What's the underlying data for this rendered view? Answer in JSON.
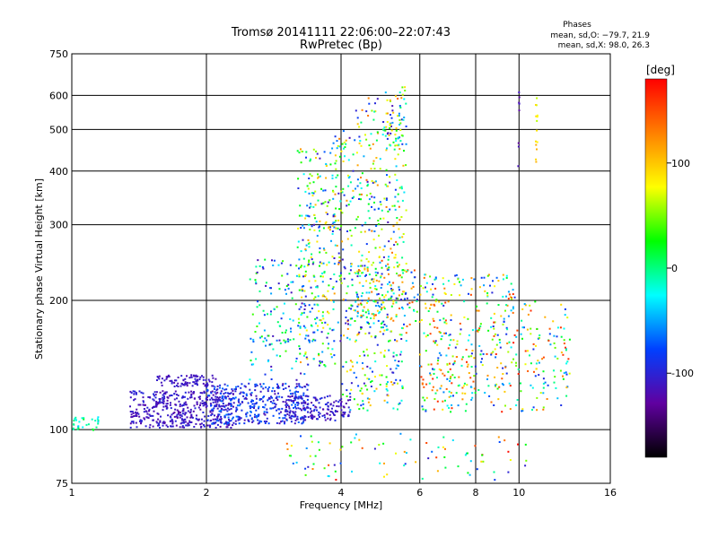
{
  "chart_data": {
    "type": "scatter",
    "title": "Tromsø 20141111 22:06:00–22:07:43",
    "subtitle": "RwPretec (Bp)",
    "xlabel": "Frequency [MHz]",
    "ylabel": "Stationary phase Virtual Height [km]",
    "xscale": "log",
    "yscale": "log",
    "xlim": [
      1,
      16
    ],
    "ylim": [
      75,
      750
    ],
    "xticks": [
      1,
      2,
      4,
      6,
      8,
      10,
      16
    ],
    "yticks": [
      75,
      100,
      200,
      300,
      400,
      500,
      600,
      750
    ],
    "grid": true,
    "stats": {
      "heading": "Phases",
      "line_o": "mean, sd,O: −79.7, 21.9",
      "line_x": "mean, sd,X:  98.0, 26.3"
    },
    "colorbar": {
      "label": "[deg]",
      "range": [
        -180,
        180
      ],
      "ticks": [
        100,
        0,
        -100
      ],
      "colors": [
        "#ff0000",
        "#ff8000",
        "#ffff00",
        "#00ff00",
        "#00ffff",
        "#0040ff",
        "#6000a0",
        "#000000"
      ]
    },
    "clusters": [
      {
        "x": [
          1.0,
          1.15
        ],
        "y": [
          99,
          108
        ],
        "n": 30,
        "phase": [
          -40,
          20
        ]
      },
      {
        "x": [
          1.35,
          2.3
        ],
        "y": [
          101,
          123
        ],
        "n": 420,
        "phase": [
          -125,
          -95
        ]
      },
      {
        "x": [
          1.55,
          2.1
        ],
        "y": [
          126,
          134
        ],
        "n": 90,
        "phase": [
          -120,
          -100
        ]
      },
      {
        "x": [
          2.0,
          3.4
        ],
        "y": [
          103,
          128
        ],
        "n": 380,
        "phase": [
          -120,
          -60
        ]
      },
      {
        "x": [
          3.0,
          4.2
        ],
        "y": [
          105,
          120
        ],
        "n": 160,
        "phase": [
          -125,
          -90
        ]
      },
      {
        "x": [
          2.5,
          3.4
        ],
        "y": [
          130,
          250
        ],
        "n": 140,
        "phase": [
          -120,
          40
        ]
      },
      {
        "x": [
          3.2,
          3.9
        ],
        "y": [
          140,
          450
        ],
        "n": 260,
        "phase": [
          -120,
          120
        ]
      },
      {
        "x": [
          3.8,
          4.3
        ],
        "y": [
          160,
          500
        ],
        "n": 120,
        "phase": [
          -120,
          130
        ]
      },
      {
        "x": [
          4.3,
          5.6
        ],
        "y": [
          150,
          600
        ],
        "n": 320,
        "phase": [
          -120,
          140
        ]
      },
      {
        "x": [
          4.2,
          6.0
        ],
        "y": [
          170,
          250
        ],
        "n": 160,
        "phase": [
          -110,
          160
        ]
      },
      {
        "x": [
          4.0,
          5.5
        ],
        "y": [
          110,
          150
        ],
        "n": 100,
        "phase": [
          -120,
          120
        ]
      },
      {
        "x": [
          6.0,
          7.5
        ],
        "y": [
          110,
          230
        ],
        "n": 180,
        "phase": [
          -100,
          170
        ]
      },
      {
        "x": [
          7.5,
          10.0
        ],
        "y": [
          110,
          230
        ],
        "n": 180,
        "phase": [
          -100,
          170
        ]
      },
      {
        "x": [
          10.0,
          13.0
        ],
        "y": [
          110,
          200
        ],
        "n": 110,
        "phase": [
          -100,
          170
        ]
      },
      {
        "x": [
          3.0,
          10.5
        ],
        "y": [
          76,
          98
        ],
        "n": 90,
        "phase": [
          -110,
          180
        ]
      },
      {
        "x": [
          10.9,
          11.0
        ],
        "y": [
          420,
          600
        ],
        "n": 14,
        "phase": [
          60,
          120
        ]
      },
      {
        "x": [
          9.95,
          10.02
        ],
        "y": [
          400,
          630
        ],
        "n": 8,
        "phase": [
          -130,
          -110
        ]
      },
      {
        "x": [
          5.0,
          5.6
        ],
        "y": [
          450,
          630
        ],
        "n": 40,
        "phase": [
          -120,
          110
        ]
      }
    ]
  }
}
